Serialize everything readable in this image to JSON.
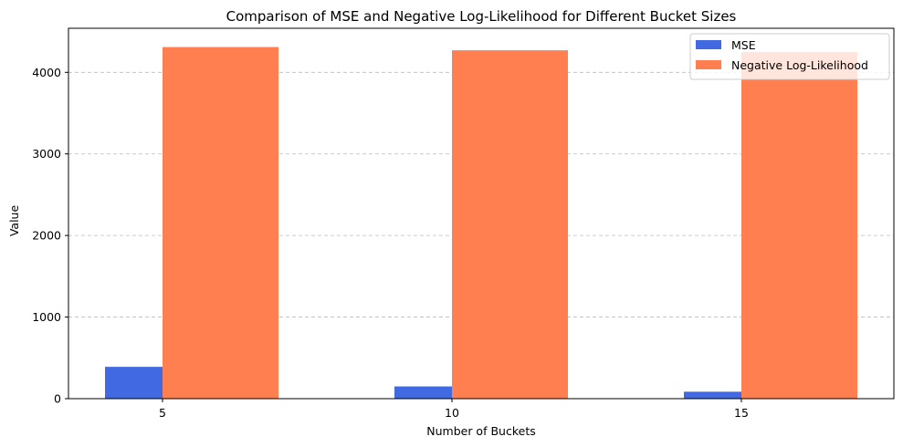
{
  "chart_data": {
    "type": "bar",
    "title": "Comparison of MSE and Negative Log-Likelihood for Different Bucket Sizes",
    "xlabel": "Number of Buckets",
    "ylabel": "Value",
    "categories": [
      "5",
      "10",
      "15"
    ],
    "series": [
      {
        "name": "MSE",
        "values": [
          390,
          150,
          85
        ],
        "color": "#4169E1"
      },
      {
        "name": "Negative Log-Likelihood",
        "values": [
          4310,
          4270,
          4250
        ],
        "color": "#FF7F50"
      }
    ],
    "ylim": [
      0,
      4540
    ],
    "yticks": [
      0,
      1000,
      2000,
      3000,
      4000
    ],
    "ytick_labels": [
      "0",
      "1000",
      "2000",
      "3000",
      "4000"
    ],
    "grid": "y-dashed",
    "legend_position": "top-right"
  }
}
